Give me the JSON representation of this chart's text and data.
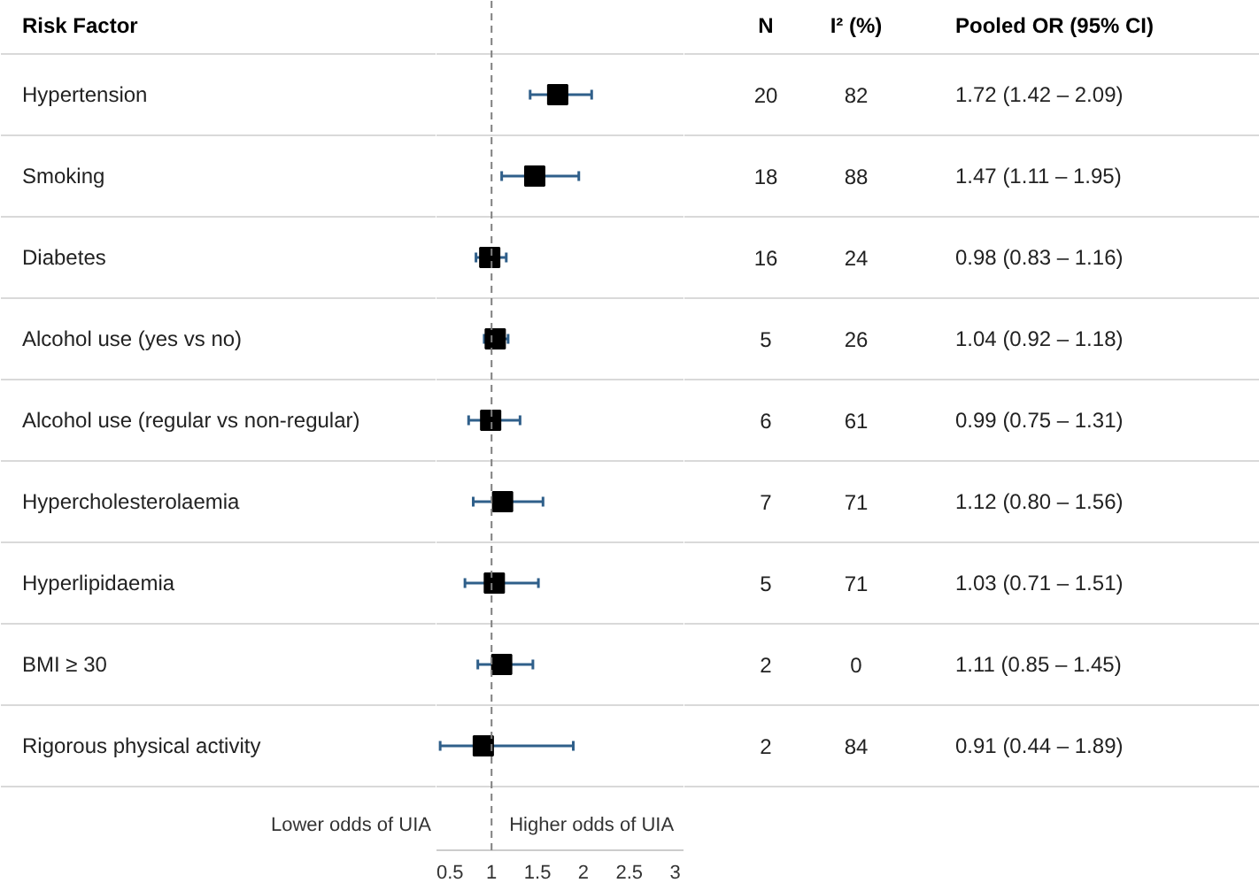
{
  "chart_data": {
    "type": "scatter",
    "orientation": "horizontal",
    "ylabel": "Risk Factor",
    "categories": [
      "Hypertension",
      "Smoking",
      "Diabetes",
      "Alcohol use (yes vs no)",
      "Alcohol use (regular vs non-regular)",
      "Hypercholesterolaemia",
      "Hyperlipidaemia",
      "BMI ≥ 30",
      "Rigorous physical activity"
    ],
    "series": [
      {
        "color": "#000000",
        "values": [
          1.72,
          1.47,
          0.98,
          1.04,
          0.99,
          1.12,
          1.03,
          1.11,
          0.91
        ],
        "errors": [
          [
            1.42,
            2.09
          ],
          [
            1.11,
            1.95
          ],
          [
            0.83,
            1.16
          ],
          [
            0.92,
            1.18
          ],
          [
            0.75,
            1.31
          ],
          [
            0.8,
            1.56
          ],
          [
            0.71,
            1.51
          ],
          [
            0.85,
            1.45
          ],
          [
            0.44,
            1.89
          ]
        ],
        "value_labels": [
          "1.72 (1.42 – 2.09)",
          "1.47 (1.11 – 1.95)",
          "0.98 (0.83 – 1.16)",
          "1.04 (0.92 – 1.18)",
          "0.99 (0.75 – 1.31)",
          "1.12 (0.80 – 1.56)",
          "1.03 (0.71 – 1.51)",
          "1.11 (0.85 – 1.45)",
          "0.91 (0.44 – 1.89)"
        ]
      }
    ],
    "marker": "square",
    "xlim": [
      0.4,
      3.1
    ],
    "xticks": [
      0.5,
      1,
      1.5,
      2,
      2.5,
      3
    ],
    "tick_labels": "x",
    "ref_lines": [
      {
        "axis": "x",
        "value": 1,
        "line_style": "dashed",
        "color": "#808080"
      }
    ],
    "annotations": [
      "N",
      "I² (%)",
      "Pooled OR (95% CI)",
      "Lower odds of UIA",
      "Higher odds of UIA",
      "20",
      "82",
      "18",
      "88",
      "16",
      "24",
      "5",
      "26",
      "6",
      "61",
      "7",
      "71",
      "5",
      "71",
      "2",
      "0",
      "2",
      "84"
    ]
  }
}
